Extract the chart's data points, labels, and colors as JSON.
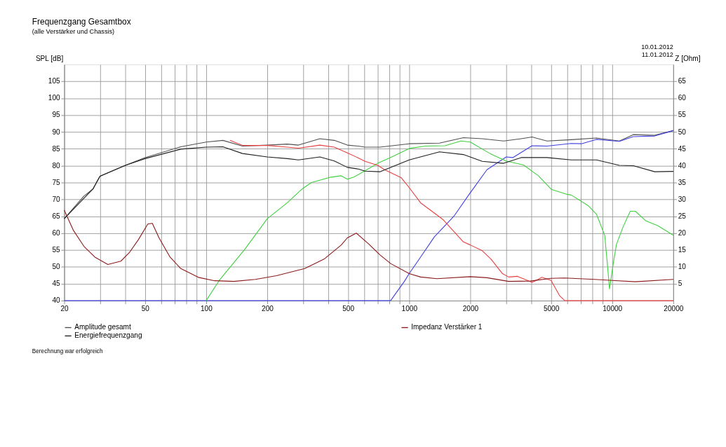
{
  "chart_data": {
    "type": "line",
    "title": "Frequenzgang Gesamtbox",
    "subtitle": "(alle Verstärker und Chassis)",
    "ylabel": "SPL [dB]",
    "y2label": "Z [Ohm]",
    "annotations": [
      "10.01.2012",
      "11.01.2012",
      "Berechnung war erfolgreich"
    ],
    "log": "x",
    "grid": true,
    "legend": "bottom",
    "line_style": "solid",
    "xlim": [
      20,
      20000
    ],
    "xticks": [
      20,
      {
        "value": 30,
        "label": null
      },
      {
        "value": 40,
        "label": null
      },
      50,
      {
        "value": 60,
        "label": null
      },
      {
        "value": 70,
        "label": null
      },
      {
        "value": 80,
        "label": null
      },
      {
        "value": 90,
        "label": null
      },
      100,
      200,
      {
        "value": 300,
        "label": null
      },
      {
        "value": 400,
        "label": null
      },
      500,
      {
        "value": 600,
        "label": null
      },
      {
        "value": 700,
        "label": null
      },
      {
        "value": 800,
        "label": null
      },
      {
        "value": 900,
        "label": null
      },
      1000,
      2000,
      {
        "value": 3000,
        "label": null
      },
      {
        "value": 4000,
        "label": null
      },
      5000,
      {
        "value": 6000,
        "label": null
      },
      {
        "value": 7000,
        "label": null
      },
      {
        "value": 8000,
        "label": null
      },
      {
        "value": 9000,
        "label": null
      },
      10000,
      20000
    ],
    "ylim": [
      40,
      110
    ],
    "yticks": [
      40,
      45,
      50,
      55,
      60,
      65,
      70,
      75,
      80,
      85,
      90,
      95,
      100,
      105
    ],
    "y2lim": [
      0,
      70
    ],
    "y2ticks": [
      5,
      10,
      15,
      20,
      25,
      30,
      35,
      40,
      45,
      50,
      55,
      60,
      65
    ],
    "series": [
      {
        "name": "Amplitude gesamt",
        "color": "#505050",
        "x": [
          20,
          25,
          27.7,
          30,
          40,
          50,
          75,
          100,
          121,
          151,
          200,
          251,
          285,
          363,
          428,
          496,
          562,
          606,
          717,
          1000,
          1410,
          1850,
          2290,
          2920,
          3560,
          4030,
          4770,
          6280,
          8370,
          10850,
          12700,
          16200,
          20000
        ],
        "values": [
          64.3,
          71,
          73.1,
          76.9,
          80.1,
          82.4,
          85.6,
          87.0,
          87.5,
          85.8,
          86.1,
          86.4,
          86.1,
          88.0,
          87.5,
          86.1,
          85.8,
          85.5,
          85.5,
          86.5,
          86.7,
          88.3,
          88.0,
          87.3,
          88.0,
          88.5,
          87.3,
          87.7,
          88.2,
          87.3,
          89.2,
          89.0,
          90.4
        ]
      },
      {
        "color": "#4040e0",
        "x": [
          20,
          810,
          947,
          1000,
          1138,
          1330,
          1660,
          1980,
          2416,
          3007,
          3240,
          4030,
          4770,
          6280,
          7050,
          8370,
          10850,
          12700,
          16200,
          20000
        ],
        "values": [
          40,
          40,
          45.7,
          48,
          52.9,
          58.9,
          65,
          71.6,
          78.8,
          82.6,
          82.4,
          85.9,
          85.8,
          86.6,
          86.5,
          87.8,
          87.2,
          88.6,
          88.8,
          90.4
        ]
      },
      {
        "color": "#40d040",
        "x": [
          100,
          116,
          155,
          200,
          251,
          297,
          330,
          411,
          463,
          496,
          534,
          606,
          700,
          800,
          1000,
          1200,
          1500,
          1800,
          2000,
          2500,
          3000,
          3660,
          4330,
          5010,
          6000,
          6280,
          7640,
          8370,
          9190,
          9500,
          9700,
          10200,
          10500,
          11300,
          12270,
          13000,
          14600,
          16800,
          20000
        ],
        "values": [
          40,
          46,
          55.2,
          64.3,
          69,
          73.1,
          75,
          76.6,
          77,
          76,
          76.6,
          78.5,
          80.7,
          82.3,
          85.1,
          85.8,
          85.9,
          87.3,
          87.0,
          83.6,
          81.4,
          80.2,
          77,
          73,
          71.5,
          71.3,
          68.1,
          65.6,
          59.3,
          49.8,
          43.5,
          52.3,
          56.7,
          61.8,
          66.5,
          66.5,
          63.7,
          62.2,
          59.4
        ]
      },
      {
        "color": "#e84040",
        "x": [
          131,
          151,
          200,
          251,
          285,
          363,
          428,
          496,
          562,
          606,
          700,
          757,
          915,
          1000,
          1138,
          1470,
          1850,
          2000,
          2290,
          2530,
          2880,
          3090,
          3420,
          4030,
          4510,
          5000,
          5500,
          5840,
          20000
        ],
        "values": [
          87.5,
          86.0,
          86.0,
          85.5,
          85.2,
          86.1,
          85.5,
          83.8,
          82.3,
          81.3,
          80.1,
          78.8,
          76.4,
          73.5,
          69,
          64.0,
          57.4,
          56.5,
          54.8,
          52.3,
          48,
          47,
          47.2,
          45.4,
          46.9,
          46,
          41.5,
          40,
          40
        ]
      },
      {
        "name": "Impedanz Verstärker 1",
        "color": "#8b1a1a",
        "axis": "y2",
        "x": [
          20,
          22.2,
          25,
          28.3,
          32.8,
          38,
          41.8,
          46.3,
          51.6,
          54.3,
          58.6,
          66.4,
          75,
          91.5,
          110,
          137,
          175,
          222,
          306,
          381,
          463,
          496,
          549,
          634,
          717,
          810,
          1000,
          1138,
          1370,
          2000,
          2416,
          3090,
          3950,
          5000,
          5840,
          8150,
          10000,
          13000,
          20000
        ],
        "values": [
          26.8,
          20.8,
          16.1,
          12.9,
          10.7,
          11.7,
          14.2,
          18,
          22.7,
          22.9,
          18.6,
          12.9,
          9.5,
          6.9,
          5.9,
          5.7,
          6.3,
          7.4,
          9.5,
          12.3,
          16.5,
          18.6,
          20,
          16.7,
          13.6,
          11,
          8,
          7,
          6.5,
          7.1,
          6.8,
          5.7,
          5.8,
          6.6,
          6.7,
          6.3,
          6.0,
          5.6,
          6.3
        ]
      },
      {
        "name": "Energiefrequenzgang",
        "color": "#202020",
        "x": [
          20,
          27.7,
          30,
          40,
          50,
          75,
          100,
          121,
          151,
          200,
          251,
          285,
          363,
          428,
          496,
          562,
          606,
          717,
          1000,
          1410,
          1850,
          2290,
          2920,
          3560,
          4030,
          4770,
          6280,
          8370,
          10850,
          12700,
          16200,
          20000
        ],
        "values": [
          64.3,
          73.1,
          76.9,
          80.1,
          82.1,
          84.9,
          85.5,
          85.6,
          83.6,
          82.6,
          82.1,
          81.7,
          82.6,
          81.4,
          79.5,
          79,
          78.4,
          78.2,
          81.7,
          84.1,
          83.3,
          81.3,
          80.7,
          82.4,
          82.4,
          82.4,
          81.7,
          81.7,
          80.1,
          80,
          78.2,
          78.3
        ]
      }
    ]
  }
}
